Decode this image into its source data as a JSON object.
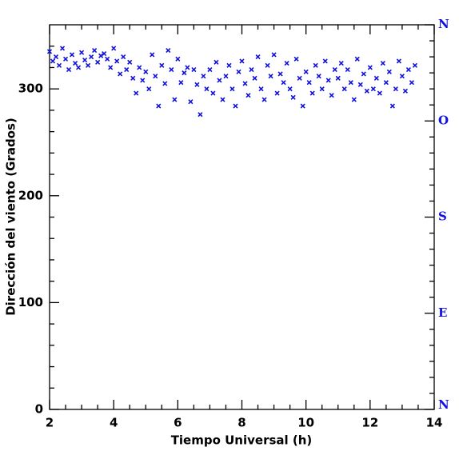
{
  "chart_data": {
    "type": "scatter",
    "xlabel": "Tiempo Universal (h)",
    "ylabel": "Dirección del viento (Grados)",
    "xlim": [
      2,
      14
    ],
    "xticks": [
      2,
      4,
      6,
      8,
      10,
      12,
      14
    ],
    "ylim": [
      0,
      360
    ],
    "yticks": [
      0,
      100,
      200,
      300
    ],
    "y2lim": [
      0,
      360
    ],
    "y2ticks": [
      {
        "value": 0,
        "label": "N"
      },
      {
        "value": 90,
        "label": "E"
      },
      {
        "value": 180,
        "label": "S"
      },
      {
        "value": 270,
        "label": "O"
      },
      {
        "value": 360,
        "label": "N"
      }
    ],
    "series": [
      {
        "color": "#1010e0",
        "x": [
          2.0,
          2.1,
          2.2,
          2.3,
          2.4,
          2.5,
          2.6,
          2.7,
          2.8,
          2.9,
          3.0,
          3.1,
          3.2,
          3.3,
          3.4,
          3.5,
          3.6,
          3.7,
          3.8,
          3.9,
          4.0,
          4.1,
          4.2,
          4.3,
          4.4,
          4.5,
          4.6,
          4.7,
          4.8,
          4.9,
          5.0,
          5.1,
          5.2,
          5.3,
          5.4,
          5.5,
          5.6,
          5.7,
          5.8,
          5.9,
          6.0,
          6.1,
          6.2,
          6.3,
          6.4,
          6.5,
          6.6,
          6.7,
          6.8,
          6.9,
          7.0,
          7.1,
          7.2,
          7.3,
          7.4,
          7.5,
          7.6,
          7.7,
          7.8,
          7.9,
          8.0,
          8.1,
          8.2,
          8.3,
          8.4,
          8.5,
          8.6,
          8.7,
          8.8,
          8.9,
          9.0,
          9.1,
          9.2,
          9.3,
          9.4,
          9.5,
          9.6,
          9.7,
          9.8,
          9.9,
          10.0,
          10.1,
          10.2,
          10.3,
          10.4,
          10.5,
          10.6,
          10.7,
          10.8,
          10.9,
          11.0,
          11.1,
          11.2,
          11.3,
          11.4,
          11.5,
          11.6,
          11.7,
          11.8,
          11.9,
          12.0,
          12.1,
          12.2,
          12.3,
          12.4,
          12.5,
          12.6,
          12.7,
          12.8,
          12.9,
          13.0,
          13.1,
          13.2,
          13.3,
          13.4
        ],
        "values": [
          335,
          326,
          330,
          322,
          338,
          328,
          318,
          332,
          324,
          320,
          334,
          327,
          322,
          330,
          336,
          325,
          331,
          333,
          328,
          320,
          338,
          326,
          314,
          330,
          318,
          325,
          310,
          296,
          320,
          308,
          316,
          300,
          332,
          312,
          284,
          322,
          305,
          336,
          318,
          290,
          328,
          306,
          315,
          320,
          288,
          318,
          304,
          276,
          312,
          300,
          318,
          296,
          325,
          308,
          290,
          312,
          322,
          300,
          284,
          316,
          326,
          305,
          294,
          318,
          310,
          330,
          300,
          290,
          322,
          312,
          332,
          296,
          314,
          306,
          324,
          300,
          292,
          328,
          310,
          284,
          316,
          306,
          296,
          322,
          312,
          300,
          326,
          308,
          294,
          318,
          310,
          324,
          300,
          318,
          306,
          290,
          328,
          304,
          314,
          298,
          320,
          300,
          310,
          296,
          324,
          306,
          316,
          284,
          300,
          326,
          312,
          298,
          318,
          306,
          322
        ]
      }
    ]
  }
}
